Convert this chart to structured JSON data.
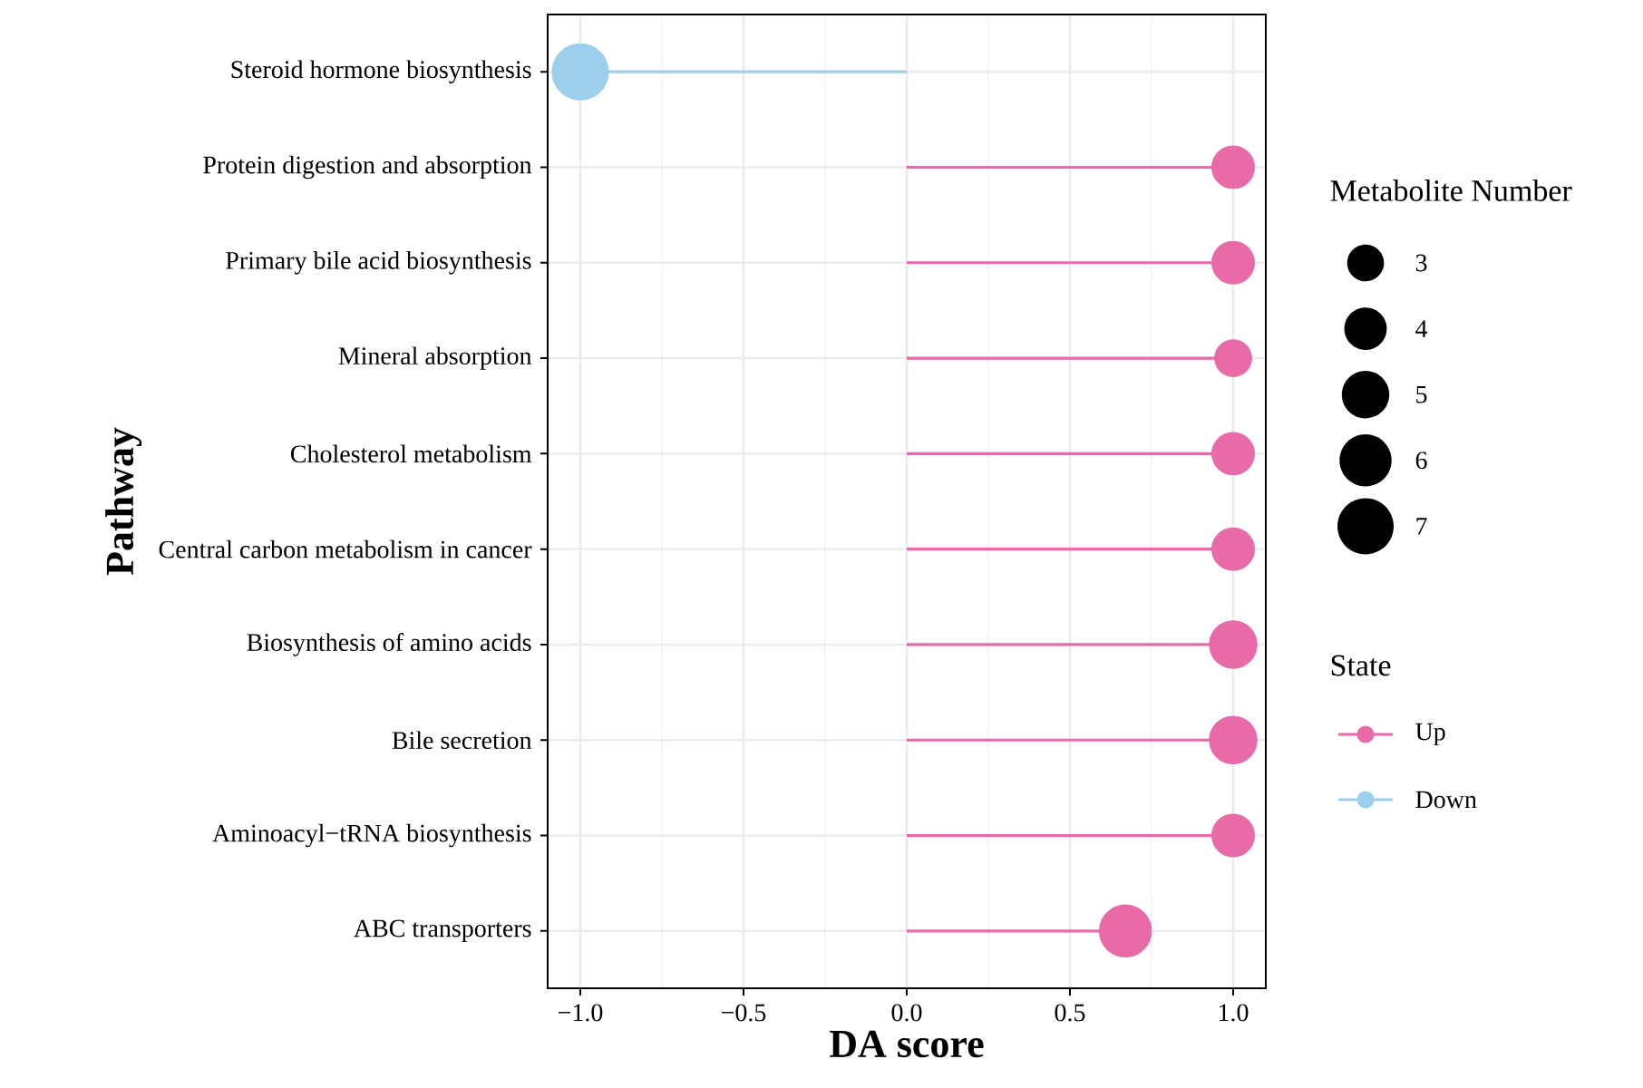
{
  "chart_data": {
    "type": "lollipop",
    "xlabel": "DA score",
    "ylabel": "Pathway",
    "legend_title": "State",
    "annotations": [
      "Metabolite Number"
    ],
    "categories": [
      "Steroid hormone biosynthesis",
      "Protein digestion and absorption",
      "Primary bile acid biosynthesis",
      "Mineral absorption",
      "Cholesterol metabolism",
      "Central carbon metabolism in cancer",
      "Biosynthesis of amino acids",
      "Bile secretion",
      "Aminoacyl−tRNA biosynthesis",
      "ABC transporters"
    ],
    "series": [
      {
        "name": "Up",
        "color": "#e96aa9",
        "values": [
          null,
          1,
          1,
          1,
          1,
          1,
          1,
          1,
          1,
          0.67
        ],
        "sizes": [
          null,
          4,
          4,
          3,
          4,
          4,
          5,
          5,
          4,
          6
        ]
      },
      {
        "name": "Down",
        "color": "#9ccfeb",
        "values": [
          -1,
          null,
          null,
          null,
          null,
          null,
          null,
          null,
          null,
          null
        ],
        "sizes": [
          7,
          null,
          null,
          null,
          null,
          null,
          null,
          null,
          null,
          null
        ]
      }
    ],
    "size_legend": [
      {
        "value": 3,
        "label": "3"
      },
      {
        "value": 4,
        "label": "4"
      },
      {
        "value": 5,
        "label": "5"
      },
      {
        "value": 6,
        "label": "6"
      },
      {
        "value": 7,
        "label": "7"
      }
    ],
    "orientation": "horizontal",
    "xlim": [
      -1.1,
      1.1
    ],
    "xticks": [
      {
        "value": -1,
        "label": "−1.0"
      },
      {
        "value": -0.5,
        "label": "−0.5"
      },
      {
        "value": 0,
        "label": "0.0"
      },
      {
        "value": 0.5,
        "label": "0.5"
      },
      {
        "value": 1,
        "label": "1.0"
      }
    ],
    "grid": true,
    "legend": "right",
    "marker": "circle",
    "line_style": "solid"
  }
}
